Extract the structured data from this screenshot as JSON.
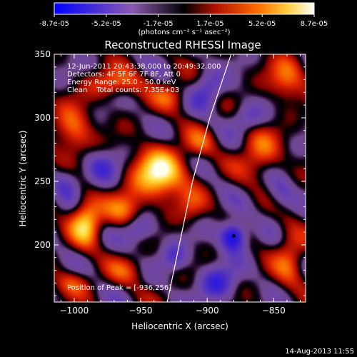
{
  "colorbar": {
    "ticks": [
      "-8.7e-05",
      "-5.2e-05",
      "-1.7e-05",
      "1.7e-05",
      "5.2e-05",
      "8.7e-05"
    ],
    "units": "(photons cm⁻² s⁻¹ asec⁻²)",
    "colors": [
      "#0000ff",
      "#5a2cc8",
      "#8a5ab0",
      "#000000",
      "#8b0000",
      "#ff3200",
      "#ff9a00",
      "#fff7a0",
      "#ffffff"
    ]
  },
  "chart_data": {
    "type": "heatmap",
    "title": "Reconstructed RHESSI Image",
    "xlabel": "Heliocentric X (arcsec)",
    "ylabel": "Heliocentric Y (arcsec)",
    "xlim": [
      -1015,
      -826
    ],
    "ylim": [
      155,
      350
    ],
    "xticks": [
      -1000,
      -950,
      -900,
      -850
    ],
    "yticks": [
      200,
      250,
      300,
      350
    ],
    "xtick_labels": [
      "−1000",
      "−950",
      "−900",
      "−850"
    ],
    "ytick_labels": [
      "200",
      "250",
      "300",
      "350"
    ],
    "peak": [
      -936,
      256
    ],
    "limb_points": [
      [
        -930,
        155
      ],
      [
        -921,
        200
      ],
      [
        -911,
        250
      ],
      [
        -898,
        300
      ],
      [
        -882,
        350
      ]
    ],
    "blobs": [
      {
        "x": -936,
        "y": 256,
        "sx": 14,
        "sy": 14,
        "a": 1.0
      },
      {
        "x": -991,
        "y": 218,
        "sx": 8,
        "sy": 13,
        "a": 0.85
      },
      {
        "x": -962,
        "y": 227,
        "sx": 10,
        "sy": 10,
        "a": 0.55
      },
      {
        "x": -1001,
        "y": 289,
        "sx": 10,
        "sy": 14,
        "a": 0.6
      },
      {
        "x": -968,
        "y": 327,
        "sx": 15,
        "sy": 8,
        "a": 0.5
      },
      {
        "x": -927,
        "y": 317,
        "sx": 9,
        "sy": 8,
        "a": 0.4
      },
      {
        "x": -840,
        "y": 330,
        "sx": 10,
        "sy": 12,
        "a": 0.55
      },
      {
        "x": -860,
        "y": 272,
        "sx": 11,
        "sy": 14,
        "a": 0.5
      },
      {
        "x": -838,
        "y": 190,
        "sx": 8,
        "sy": 18,
        "a": 0.45
      },
      {
        "x": -1002,
        "y": 170,
        "sx": 10,
        "sy": 7,
        "a": 0.4
      },
      {
        "x": -960,
        "y": 180,
        "sx": 10,
        "sy": 8,
        "a": 0.35
      },
      {
        "x": -912,
        "y": 230,
        "sx": 8,
        "sy": 10,
        "a": 0.3
      },
      {
        "x": -905,
        "y": 280,
        "sx": 8,
        "sy": 8,
        "a": 0.35
      },
      {
        "x": -880,
        "y": 207,
        "sx": 7,
        "sy": 8,
        "a": -0.95
      },
      {
        "x": -892,
        "y": 170,
        "sx": 10,
        "sy": 10,
        "a": -0.55
      },
      {
        "x": -952,
        "y": 212,
        "sx": 9,
        "sy": 8,
        "a": -0.5
      },
      {
        "x": -980,
        "y": 262,
        "sx": 10,
        "sy": 10,
        "a": -0.4
      },
      {
        "x": -900,
        "y": 322,
        "sx": 8,
        "sy": 10,
        "a": -0.45
      },
      {
        "x": -1005,
        "y": 250,
        "sx": 7,
        "sy": 9,
        "a": -0.4
      },
      {
        "x": -845,
        "y": 240,
        "sx": 8,
        "sy": 10,
        "a": -0.35
      },
      {
        "x": -925,
        "y": 190,
        "sx": 8,
        "sy": 8,
        "a": -0.4
      },
      {
        "x": -870,
        "y": 300,
        "sx": 9,
        "sy": 8,
        "a": -0.35
      }
    ]
  },
  "annotations": {
    "time_range": "12-Jun-2011 20:43:38.000 to 20:49:32.000",
    "detectors": "Detectors: 4F 5F 6F 7F 8F, Att 0",
    "energy": "Energy Range: 25.0 - 50.0 keV",
    "clean": "Clean    Total counts: 7.35E+03",
    "peak": "Position of Peak = [-936,256]"
  },
  "footer": {
    "date": "14-Aug-2013 11:55"
  }
}
